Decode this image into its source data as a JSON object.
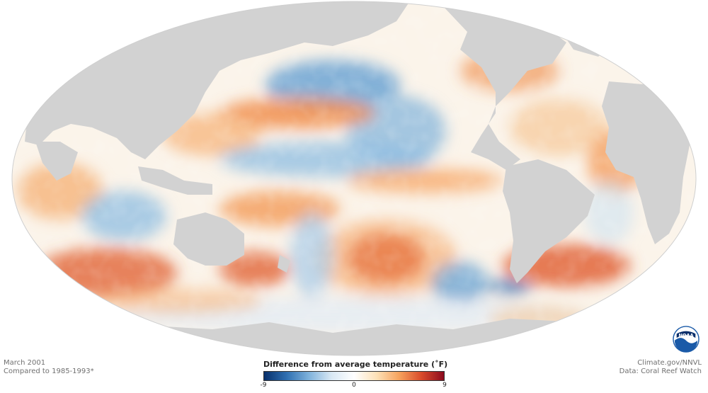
{
  "map": {
    "projection": "Mollweide",
    "land_color": "#d2d2d2",
    "ocean_base_color": "#fbf4ea"
  },
  "footer": {
    "date": "March 2001",
    "baseline": "Compared to 1985-1993*",
    "credit": "Climate.gov/NNVL",
    "source": "Data: Coral Reef Watch"
  },
  "legend": {
    "title": "Difference from average temperature (˚F)",
    "min_label": "-9",
    "mid_label": "0",
    "max_label": "9",
    "min_value": -9,
    "max_value": 9,
    "colors": [
      "#08306b",
      "#2f6fb1",
      "#7fb2dc",
      "#d9e8f4",
      "#ffffff",
      "#fde1b8",
      "#f6a35e",
      "#d94b2b",
      "#8b0a1e"
    ]
  },
  "logo": {
    "icon": "noaa-logo-icon",
    "text": "NOAA",
    "color": "#1a5aa8"
  }
}
